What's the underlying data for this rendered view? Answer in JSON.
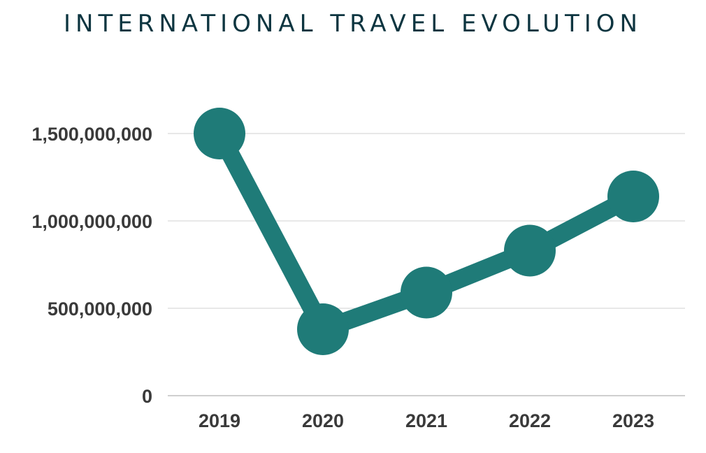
{
  "chart_data": {
    "type": "line",
    "title": "INTERNATIONAL TRAVEL EVOLUTION",
    "categories": [
      "2019",
      "2020",
      "2021",
      "2022",
      "2023"
    ],
    "series": [
      {
        "values": [
          1500000000,
          380000000,
          590000000,
          830000000,
          1140000000
        ],
        "color": "#1f7b78"
      }
    ],
    "yticks": [
      "0",
      "500,000,000",
      "1,000,000,000",
      "1,500,000,000"
    ],
    "ytick_values": [
      0,
      500000000,
      1000000000,
      1500000000
    ],
    "ylim": [
      0,
      1500000000
    ],
    "grid": true,
    "legend": "none",
    "xlabel": "",
    "ylabel": ""
  }
}
